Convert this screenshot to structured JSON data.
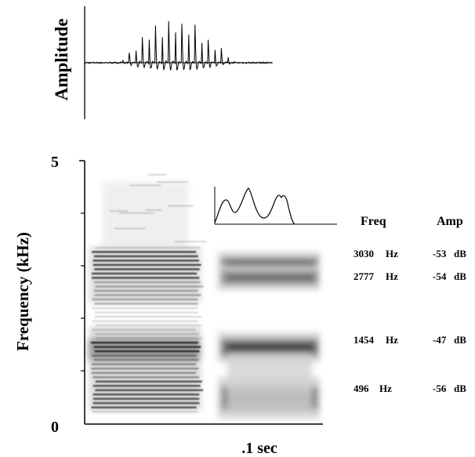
{
  "waveform": {
    "ylabel": "Amplitude"
  },
  "spectrogram": {
    "ylabel": "Frequency (kHz)",
    "y_tick_top": "5",
    "y_tick_bottom": "0",
    "time_scale_label": ".1 sec",
    "ymax_khz": 5
  },
  "formant_table": {
    "col_freq": "Freq",
    "col_amp": "Amp",
    "rows": [
      {
        "freq": "3030",
        "freq_unit": "Hz",
        "amp": "-53",
        "amp_unit": "dB",
        "freq_khz": 3.03
      },
      {
        "freq": "2777",
        "freq_unit": "Hz",
        "amp": "-54",
        "amp_unit": "dB",
        "freq_khz": 2.777
      },
      {
        "freq": "1454",
        "freq_unit": "Hz",
        "amp": "-47",
        "amp_unit": "dB",
        "freq_khz": 1.454
      },
      {
        "freq": "496",
        "freq_unit": "Hz",
        "amp": "-56",
        "amp_unit": "dB",
        "freq_khz": 0.496
      }
    ]
  },
  "colors": {
    "ink": "#000000",
    "band_dark": "#1e1e1e",
    "band_mid": "#6e6e6e",
    "band_light": "#d2d2d2"
  }
}
